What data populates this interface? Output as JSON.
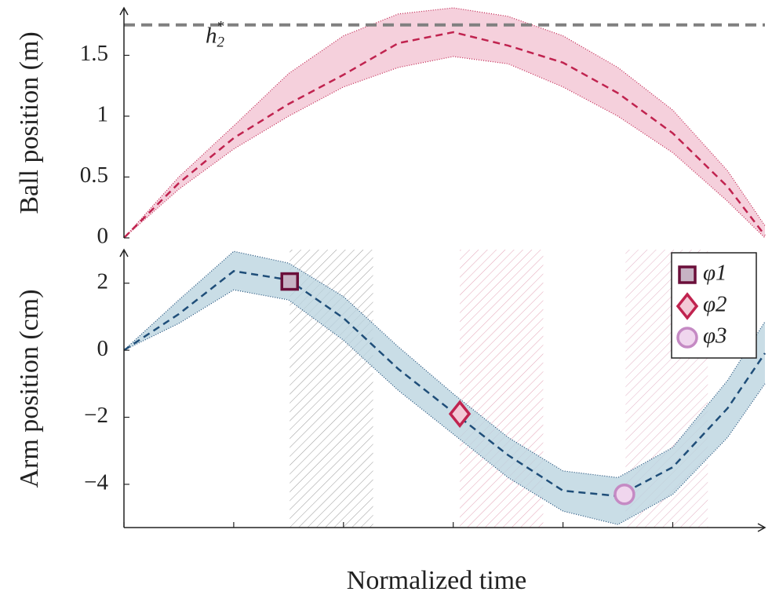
{
  "chart_data": [
    {
      "type": "line",
      "ylabel": "Ball position (m)",
      "x": [
        0,
        0.5,
        1,
        1.5,
        2,
        2.5,
        3,
        3.5,
        4,
        4.5,
        5,
        5.5,
        5.84
      ],
      "xlim": [
        0,
        5.84
      ],
      "ylim": [
        0,
        1.89
      ],
      "yticks": [
        0,
        0.5,
        1,
        1.5
      ],
      "series": [
        {
          "color": "#c0234f",
          "band_color": "#f2c4d3",
          "values": [
            0,
            0.45,
            0.82,
            1.1,
            1.34,
            1.6,
            1.69,
            1.58,
            1.44,
            1.19,
            0.86,
            0.42,
            0.02
          ],
          "upper": [
            0,
            0.5,
            0.92,
            1.35,
            1.66,
            1.84,
            1.89,
            1.82,
            1.66,
            1.4,
            1.05,
            0.55,
            0.1
          ],
          "lower": [
            0,
            0.4,
            0.73,
            1.0,
            1.24,
            1.4,
            1.49,
            1.43,
            1.24,
            1.0,
            0.7,
            0.3,
            0
          ]
        }
      ],
      "hline": {
        "value": 1.75,
        "label": "h",
        "label_sub": "2",
        "label_sup": "*",
        "color": "#808080"
      }
    },
    {
      "type": "line",
      "ylabel": "Arm position (cm)",
      "xlabel": "Normalized time",
      "x": [
        0,
        0.5,
        1,
        1.5,
        2,
        2.5,
        3,
        3.5,
        4,
        4.5,
        5,
        5.5,
        5.84
      ],
      "xlim": [
        0,
        5.84
      ],
      "xticks": [
        0,
        1,
        2,
        3,
        4,
        5
      ],
      "ylim": [
        -5.29,
        3.0
      ],
      "yticks": [
        {
          "value": -4,
          "label": "−4"
        },
        {
          "value": -2,
          "label": "−2"
        },
        0,
        2
      ],
      "series": [
        {
          "color": "#1f4e79",
          "band_color": "#bcd5e0",
          "values": [
            0,
            1.08,
            2.36,
            2.1,
            0.96,
            -0.56,
            -1.85,
            -3.13,
            -4.19,
            -4.35,
            -3.49,
            -1.73,
            -0.09
          ],
          "upper": [
            0,
            1.5,
            2.95,
            2.6,
            1.6,
            0.1,
            -1.3,
            -2.6,
            -3.6,
            -3.8,
            -2.9,
            -0.9,
            0.85
          ],
          "lower": [
            0,
            0.8,
            1.8,
            1.5,
            0.3,
            -1.2,
            -2.5,
            -3.8,
            -4.8,
            -5.2,
            -4.3,
            -2.6,
            -1.0
          ]
        }
      ],
      "regions": [
        {
          "x": [
            1.51,
            2.27
          ],
          "color": "#9a9a9a"
        },
        {
          "x": [
            3.06,
            3.82
          ],
          "color": "#e3a3b6"
        },
        {
          "x": [
            4.57,
            5.32
          ],
          "color": "#e3b3c6"
        }
      ],
      "markers": [
        {
          "name": "φ1",
          "shape": "square",
          "x": 1.51,
          "y": 2.05,
          "color": "#6b0f3a",
          "fill": "#c7b3c4"
        },
        {
          "name": "φ2",
          "shape": "diamond",
          "x": 3.06,
          "y": -1.9,
          "color": "#c0234f",
          "fill": "#f3c9d6"
        },
        {
          "name": "φ3",
          "shape": "circle",
          "x": 4.56,
          "y": -4.3,
          "color": "#c58ac4",
          "fill": "#f0d6ee"
        }
      ],
      "legend": "upper right"
    }
  ]
}
